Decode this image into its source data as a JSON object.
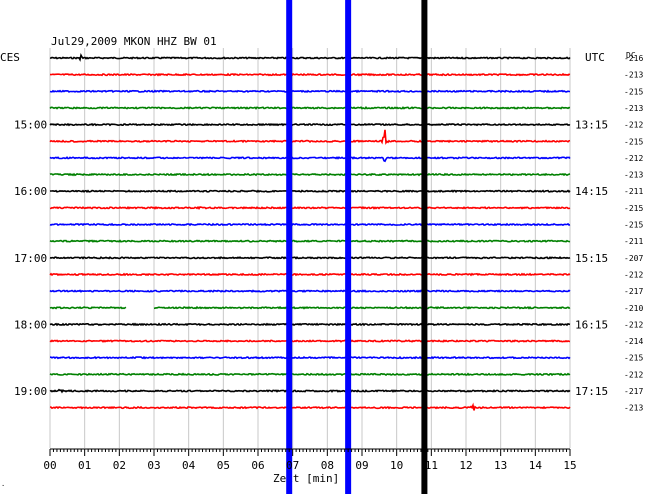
{
  "chart_data": {
    "type": "line",
    "title": "Jul29,2009   MKON HHZ BW 01",
    "left_corner_label": "CES",
    "right_corner_label": "UTC",
    "dc_header": "DC",
    "xlabel": "Zeit [min]",
    "xlim": [
      0,
      15
    ],
    "x_tick_labels": [
      "00",
      "01",
      "02",
      "03",
      "04",
      "05",
      "06",
      "07",
      "08",
      "09",
      "10",
      "11",
      "12",
      "13",
      "14",
      "15"
    ],
    "row_colors": [
      "#000000",
      "#ff0000",
      "#0000ff",
      "#008000"
    ],
    "left_time_labels": [
      {
        "row": 4,
        "text": "15:00"
      },
      {
        "row": 8,
        "text": "16:00"
      },
      {
        "row": 12,
        "text": "17:00"
      },
      {
        "row": 16,
        "text": "18:00"
      },
      {
        "row": 20,
        "text": "19:00"
      }
    ],
    "right_time_labels": [
      {
        "row": 4,
        "text": "13:15"
      },
      {
        "row": 8,
        "text": "14:15"
      },
      {
        "row": 12,
        "text": "15:15"
      },
      {
        "row": 16,
        "text": "16:15"
      },
      {
        "row": 20,
        "text": "17:15"
      }
    ],
    "dc_values": [
      "-216",
      "-213",
      "-215",
      "-213",
      "-212",
      "-215",
      "-212",
      "-213",
      "-211",
      "-215",
      "-215",
      "-211",
      "-207",
      "-212",
      "-217",
      "-210",
      "-212",
      "-214",
      "-215",
      "-212",
      "-217",
      "-213"
    ],
    "events": [
      {
        "row": 0,
        "minute": 0.9,
        "amplitude": 6
      },
      {
        "row": 5,
        "minute": 9.65,
        "amplitude": 20
      },
      {
        "row": 6,
        "minute": 9.65,
        "amplitude": 6
      },
      {
        "row": 9,
        "minute": 4.3,
        "amplitude": 4
      },
      {
        "row": 16,
        "minute": 1.4,
        "amplitude": 3
      },
      {
        "row": 20,
        "minute": 0.3,
        "amplitude": 5
      },
      {
        "row": 21,
        "minute": 12.2,
        "amplitude": 12
      }
    ],
    "gaps": [
      {
        "row": 15,
        "start_minute": 2.2,
        "end_minute": 3.0
      }
    ],
    "interference_bars": [
      {
        "minute": 6.9,
        "color": "#0000ff"
      },
      {
        "minute": 8.6,
        "color": "#0000ff"
      },
      {
        "minute": 10.8,
        "color": "#000000"
      }
    ]
  }
}
